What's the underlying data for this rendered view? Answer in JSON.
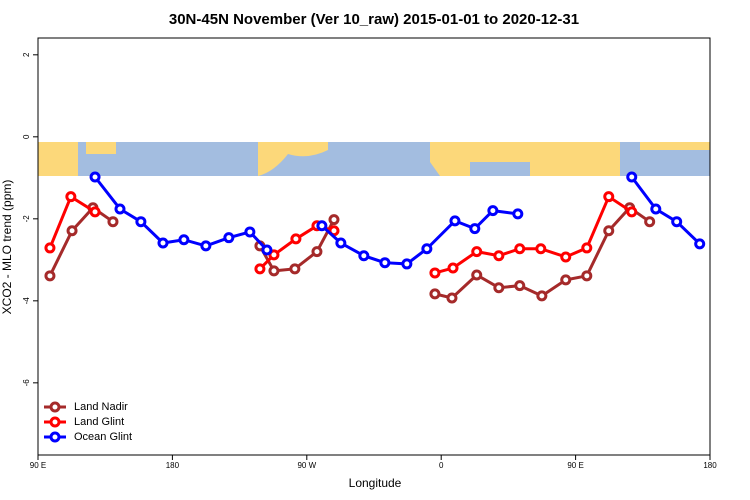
{
  "chart_data": {
    "type": "line",
    "title": "30N-45N November (Ver 10_raw)   2015-01-01 to 2020-12-31",
    "xlabel": "Longitude",
    "ylabel": "XCO2 - MLO trend (ppm)",
    "xlim": [
      90,
      540
    ],
    "ylim": [
      -7.76,
      2.41
    ],
    "xticks": [
      {
        "value": 90,
        "label": "90 E"
      },
      180,
      {
        "value": 270,
        "label": "90 W"
      },
      {
        "value": 360,
        "label": "0"
      },
      {
        "value": 450,
        "label": "90 E"
      },
      {
        "value": 540,
        "label": "180"
      }
    ],
    "yticks": [
      2,
      0,
      -2,
      -4,
      -6
    ],
    "legend": "bottom-left",
    "series": [
      {
        "name": "Land Nadir",
        "color": "#a52a2a",
        "x": [
          98.0,
          112.8,
          126.8,
          140.2,
          null,
          238.6,
          248.0,
          262.0,
          276.8,
          288.2,
          null,
          355.8,
          367.2,
          383.8,
          398.6,
          412.6,
          427.4,
          443.4,
          457.5,
          472.2,
          486.2,
          499.6
        ],
        "values": [
          -3.39,
          -2.29,
          -1.73,
          -2.07,
          null,
          -2.66,
          -3.27,
          -3.22,
          -2.8,
          -2.02,
          null,
          -3.83,
          -3.93,
          -3.37,
          -3.68,
          -3.63,
          -3.88,
          -3.49,
          -3.39,
          -2.29,
          -1.73,
          -2.07
        ]
      },
      {
        "name": "Land Glint",
        "color": "#ff0000",
        "x": [
          98.0,
          112.0,
          128.2,
          null,
          238.6,
          248.0,
          262.7,
          276.8,
          288.2,
          null,
          355.8,
          367.9,
          383.8,
          398.6,
          412.6,
          426.7,
          443.4,
          457.5,
          472.2,
          487.6
        ],
        "values": [
          -2.71,
          -1.46,
          -1.83,
          null,
          -3.22,
          -2.88,
          -2.49,
          -2.17,
          -2.29,
          null,
          -3.32,
          -3.2,
          -2.8,
          -2.9,
          -2.73,
          -2.73,
          -2.93,
          -2.71,
          -1.46,
          -1.83
        ]
      },
      {
        "name": "Ocean Glint",
        "color": "#0000ff",
        "x": [
          128.2,
          144.9,
          158.9,
          173.7,
          187.7,
          202.4,
          217.8,
          231.9,
          243.3,
          null,
          280.1,
          292.8,
          308.2,
          322.3,
          337.0,
          350.4,
          369.2,
          382.5,
          394.6,
          411.3,
          null,
          487.6,
          503.7,
          517.7,
          533.1
        ],
        "values": [
          -0.98,
          -1.76,
          -2.07,
          -2.59,
          -2.51,
          -2.66,
          -2.46,
          -2.32,
          -2.76,
          null,
          -2.17,
          -2.59,
          -2.9,
          -3.07,
          -3.1,
          -2.73,
          -2.05,
          -2.24,
          -1.8,
          -1.88,
          null,
          -0.98,
          -1.76,
          -2.07,
          -2.61
        ]
      }
    ]
  }
}
